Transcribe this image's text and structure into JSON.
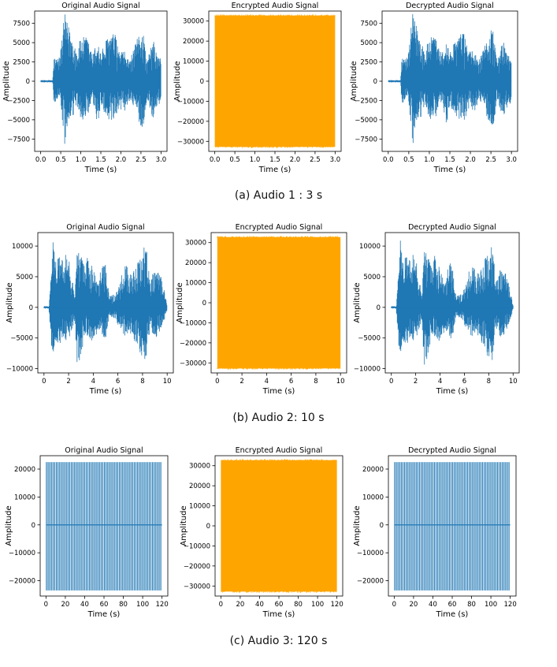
{
  "colors": {
    "original": "#1f77b4",
    "encrypted": "#ffa500",
    "decrypted": "#1f77b4",
    "axes": "#000000"
  },
  "rows": [
    {
      "caption": "(a) Audio 1 : 3 s"
    },
    {
      "caption": "(b) Audio 2: 10 s"
    },
    {
      "caption": "(c) Audio 3: 120 s"
    }
  ],
  "chart_data": [
    {
      "type": "line",
      "style": "original-waveform",
      "title": "Original Audio Signal",
      "xlabel": "Time (s)",
      "ylabel": "Amplitude",
      "xlim": [
        -0.15,
        3.15
      ],
      "ylim": [
        -9100,
        9100
      ],
      "xticks": [
        0.0,
        0.5,
        1.0,
        1.5,
        2.0,
        2.5,
        3.0
      ],
      "xtick_labels": [
        "0.0",
        "0.5",
        "1.0",
        "1.5",
        "2.0",
        "2.5",
        "3.0"
      ],
      "yticks": [
        -7500,
        -5000,
        -2500,
        0,
        2500,
        5000,
        7500
      ],
      "ytick_labels": [
        "−7500",
        "−5000",
        "−2500",
        "0",
        "2500",
        "5000",
        "7500"
      ],
      "series": [
        {
          "x": [
            0.0,
            0.3,
            0.33,
            0.4,
            0.48,
            0.6,
            0.63,
            0.75,
            0.9,
            1.0,
            1.15,
            1.3,
            1.42,
            1.5,
            1.7,
            1.85,
            1.95,
            2.1,
            2.2,
            2.3,
            2.5,
            2.55,
            2.65,
            2.8,
            2.9,
            3.0
          ],
          "y_max": [
            150,
            150,
            3100,
            3000,
            3300,
            9000,
            8000,
            6500,
            4000,
            5700,
            5800,
            3500,
            5500,
            3700,
            6200,
            6200,
            4000,
            3800,
            2700,
            3800,
            7000,
            6800,
            2500,
            5500,
            3500,
            3000
          ],
          "y_min": [
            -150,
            -150,
            -3400,
            -2400,
            -2000,
            -8500,
            -6900,
            -5400,
            -3400,
            -4900,
            -5300,
            -2600,
            -6000,
            -3100,
            -5300,
            -5800,
            -3600,
            -4000,
            -2500,
            -3300,
            -5900,
            -6600,
            -2300,
            -4900,
            -3300,
            -2800
          ]
        }
      ]
    },
    {
      "type": "line",
      "style": "encrypted-noise",
      "title": "Encrypted Audio Signal",
      "xlabel": "Time (s)",
      "ylabel": "Amplitude",
      "xlim": [
        -0.15,
        3.15
      ],
      "ylim": [
        -35000,
        35000
      ],
      "xticks": [
        0.0,
        0.5,
        1.0,
        1.5,
        2.0,
        2.5,
        3.0
      ],
      "xtick_labels": [
        "0.0",
        "0.5",
        "1.0",
        "1.5",
        "2.0",
        "2.5",
        "3.0"
      ],
      "yticks": [
        -30000,
        -20000,
        -10000,
        0,
        10000,
        20000,
        30000
      ],
      "ytick_labels": [
        "−30000",
        "−20000",
        "−10000",
        "0",
        "10000",
        "20000",
        "30000"
      ],
      "series": [
        {
          "x": [
            0,
            3
          ],
          "y_max": [
            32767,
            32767
          ],
          "y_min": [
            -32768,
            -32768
          ]
        }
      ]
    },
    {
      "type": "line",
      "style": "decrypted-waveform",
      "title": "Decrypted Audio Signal",
      "xlabel": "Time (s)",
      "ylabel": "Amplitude",
      "xlim": [
        -0.15,
        3.15
      ],
      "ylim": [
        -9100,
        9100
      ],
      "xticks": [
        0.0,
        0.5,
        1.0,
        1.5,
        2.0,
        2.5,
        3.0
      ],
      "xtick_labels": [
        "0.0",
        "0.5",
        "1.0",
        "1.5",
        "2.0",
        "2.5",
        "3.0"
      ],
      "yticks": [
        -7500,
        -5000,
        -2500,
        0,
        2500,
        5000,
        7500
      ],
      "ytick_labels": [
        "−7500",
        "−5000",
        "−2500",
        "0",
        "2500",
        "5000",
        "7500"
      ],
      "series": [
        {
          "x": [
            0.0,
            0.3,
            0.33,
            0.4,
            0.48,
            0.6,
            0.63,
            0.75,
            0.9,
            1.0,
            1.15,
            1.3,
            1.42,
            1.5,
            1.7,
            1.85,
            1.95,
            2.1,
            2.2,
            2.3,
            2.5,
            2.55,
            2.65,
            2.8,
            2.9,
            3.0
          ],
          "y_max": [
            150,
            150,
            3100,
            3000,
            3300,
            9000,
            8000,
            6500,
            4000,
            5700,
            5800,
            3500,
            5500,
            3700,
            6200,
            6200,
            4000,
            3800,
            2700,
            3800,
            7000,
            6800,
            2500,
            5500,
            3500,
            3000
          ],
          "y_min": [
            -150,
            -150,
            -3400,
            -2400,
            -2000,
            -8500,
            -6900,
            -5400,
            -3400,
            -4900,
            -5300,
            -2600,
            -6000,
            -3100,
            -5300,
            -5800,
            -3600,
            -4000,
            -2500,
            -3300,
            -5900,
            -6600,
            -2300,
            -4900,
            -3300,
            -2800
          ]
        }
      ]
    },
    {
      "type": "line",
      "style": "original-waveform",
      "title": "Original Audio Signal",
      "xlabel": "Time (s)",
      "ylabel": "Amplitude",
      "xlim": [
        -0.5,
        10.5
      ],
      "ylim": [
        -10700,
        12200
      ],
      "xticks": [
        0,
        2,
        4,
        6,
        8,
        10
      ],
      "xtick_labels": [
        "0",
        "2",
        "4",
        "6",
        "8",
        "10"
      ],
      "yticks": [
        -10000,
        -5000,
        0,
        5000,
        10000
      ],
      "ytick_labels": [
        "−10000",
        "−5000",
        "0",
        "5000",
        "10000"
      ],
      "series": [
        {
          "x": [
            0.0,
            0.4,
            0.6,
            0.75,
            1.0,
            1.2,
            1.6,
            2.0,
            2.5,
            2.7,
            3.0,
            3.3,
            3.6,
            4.0,
            4.4,
            4.9,
            5.3,
            5.8,
            6.3,
            6.6,
            7.0,
            7.6,
            7.9,
            8.3,
            8.6,
            9.0,
            9.4,
            9.8,
            10.0
          ],
          "y_max": [
            200,
            200,
            6500,
            11300,
            7000,
            9200,
            9000,
            9000,
            2000,
            9300,
            9000,
            6500,
            9000,
            7200,
            4200,
            8800,
            2000,
            2200,
            5300,
            7700,
            5800,
            7400,
            9800,
            10000,
            4100,
            6500,
            6000,
            2500,
            300
          ],
          "y_min": [
            -200,
            -200,
            -8100,
            -7700,
            -5500,
            -6100,
            -5200,
            -5700,
            -2000,
            -9800,
            -8000,
            -4600,
            -5300,
            -5700,
            -3800,
            -6300,
            -1500,
            -1900,
            -4100,
            -5100,
            -4300,
            -6500,
            -8500,
            -9200,
            -3400,
            -5200,
            -3900,
            -2000,
            -300
          ]
        }
      ]
    },
    {
      "type": "line",
      "style": "encrypted-noise",
      "title": "Encrypted Audio Signal",
      "xlabel": "Time (s)",
      "ylabel": "Amplitude",
      "xlim": [
        -0.5,
        10.5
      ],
      "ylim": [
        -35000,
        35000
      ],
      "xticks": [
        0,
        2,
        4,
        6,
        8,
        10
      ],
      "xtick_labels": [
        "0",
        "2",
        "4",
        "6",
        "8",
        "10"
      ],
      "yticks": [
        -30000,
        -20000,
        -10000,
        0,
        10000,
        20000,
        30000
      ],
      "ytick_labels": [
        "−30000",
        "−20000",
        "−10000",
        "0",
        "10000",
        "20000",
        "30000"
      ],
      "series": [
        {
          "x": [
            0,
            10
          ],
          "y_max": [
            32767,
            32767
          ],
          "y_min": [
            -32768,
            -32768
          ]
        }
      ]
    },
    {
      "type": "line",
      "style": "decrypted-waveform",
      "title": "Decrypted Audio Signal",
      "xlabel": "Time (s)",
      "ylabel": "Amplitude",
      "xlim": [
        -0.5,
        10.5
      ],
      "ylim": [
        -10700,
        12200
      ],
      "xticks": [
        0,
        2,
        4,
        6,
        8,
        10
      ],
      "xtick_labels": [
        "0",
        "2",
        "4",
        "6",
        "8",
        "10"
      ],
      "yticks": [
        -10000,
        -5000,
        0,
        5000,
        10000
      ],
      "ytick_labels": [
        "−10000",
        "−5000",
        "0",
        "5000",
        "10000"
      ],
      "series": [
        {
          "x": [
            0.0,
            0.4,
            0.6,
            0.75,
            1.0,
            1.2,
            1.6,
            2.0,
            2.5,
            2.7,
            3.0,
            3.3,
            3.6,
            4.0,
            4.4,
            4.9,
            5.3,
            5.8,
            6.3,
            6.6,
            7.0,
            7.6,
            7.9,
            8.3,
            8.6,
            9.0,
            9.4,
            9.8,
            10.0
          ],
          "y_max": [
            200,
            200,
            6500,
            11300,
            7000,
            9200,
            9000,
            9000,
            2000,
            9300,
            9000,
            6500,
            9000,
            7200,
            4200,
            8800,
            2000,
            2200,
            5300,
            7700,
            5800,
            7400,
            9800,
            10000,
            4100,
            6500,
            6000,
            2500,
            300
          ],
          "y_min": [
            -200,
            -200,
            -8100,
            -7700,
            -5500,
            -6100,
            -5200,
            -5700,
            -2000,
            -9800,
            -8000,
            -4600,
            -5300,
            -5700,
            -3800,
            -6300,
            -1500,
            -1900,
            -4100,
            -5100,
            -4300,
            -6500,
            -8500,
            -9200,
            -3400,
            -5200,
            -3900,
            -2000,
            -300
          ]
        }
      ]
    },
    {
      "type": "line",
      "style": "original-tone",
      "title": "Original Audio Signal",
      "xlabel": "Time (s)",
      "ylabel": "Amplitude",
      "xlim": [
        -6,
        126
      ],
      "ylim": [
        -25500,
        24800
      ],
      "xticks": [
        0,
        20,
        40,
        60,
        80,
        100,
        120
      ],
      "xtick_labels": [
        "0",
        "20",
        "40",
        "60",
        "80",
        "100",
        "120"
      ],
      "yticks": [
        -20000,
        -10000,
        0,
        10000,
        20000
      ],
      "ytick_labels": [
        "−20000",
        "−10000",
        "0",
        "10000",
        "20000"
      ],
      "series": [
        {
          "x": [
            0,
            120
          ],
          "y_max": [
            22500,
            22500
          ],
          "y_min": [
            -23500,
            -23500
          ],
          "bursts": 70
        }
      ]
    },
    {
      "type": "line",
      "style": "encrypted-noise",
      "title": "Encrypted Audio Signal",
      "xlabel": "Time (s)",
      "ylabel": "Amplitude",
      "xlim": [
        -6,
        126
      ],
      "ylim": [
        -35000,
        35000
      ],
      "xticks": [
        0,
        20,
        40,
        60,
        80,
        100,
        120
      ],
      "xtick_labels": [
        "0",
        "20",
        "40",
        "60",
        "80",
        "100",
        "120"
      ],
      "yticks": [
        -30000,
        -20000,
        -10000,
        0,
        10000,
        20000,
        30000
      ],
      "ytick_labels": [
        "−30000",
        "−20000",
        "−10000",
        "0",
        "10000",
        "20000",
        "30000"
      ],
      "series": [
        {
          "x": [
            0,
            120
          ],
          "y_max": [
            32767,
            32767
          ],
          "y_min": [
            -32768,
            -32768
          ]
        }
      ]
    },
    {
      "type": "line",
      "style": "decrypted-tone",
      "title": "Decrypted Audio Signal",
      "xlabel": "Time (s)",
      "ylabel": "Amplitude",
      "xlim": [
        -6,
        126
      ],
      "ylim": [
        -25500,
        24800
      ],
      "xticks": [
        0,
        20,
        40,
        60,
        80,
        100,
        120
      ],
      "xtick_labels": [
        "0",
        "20",
        "40",
        "60",
        "80",
        "100",
        "120"
      ],
      "yticks": [
        -20000,
        -10000,
        0,
        10000,
        20000
      ],
      "ytick_labels": [
        "−20000",
        "−10000",
        "0",
        "10000",
        "20000"
      ],
      "series": [
        {
          "x": [
            0,
            120
          ],
          "y_max": [
            22500,
            22500
          ],
          "y_min": [
            -23500,
            -23500
          ],
          "bursts": 70
        }
      ]
    }
  ]
}
